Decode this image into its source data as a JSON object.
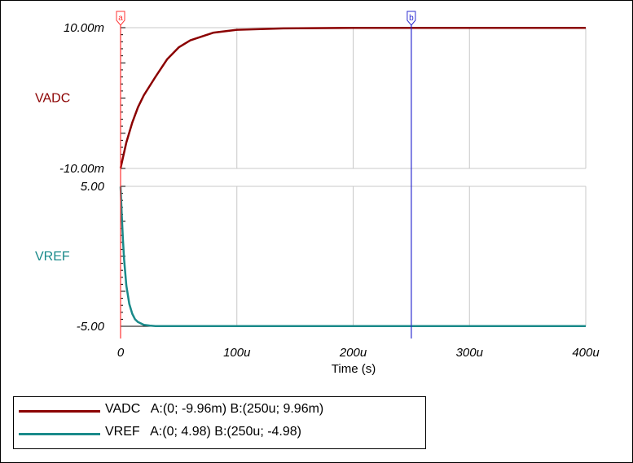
{
  "chart_data": {
    "type": "line",
    "xlabel": "Time (s)",
    "xlim": [
      0,
      0.0004
    ],
    "x_ticks": [
      {
        "value": 0,
        "label": "0"
      },
      {
        "value": 0.0001,
        "label": "100u"
      },
      {
        "value": 0.0002,
        "label": "200u"
      },
      {
        "value": 0.0003,
        "label": "300u"
      },
      {
        "value": 0.0004,
        "label": "400u"
      }
    ],
    "grid": true,
    "panels": [
      {
        "name": "VADC",
        "color": "#8b0000",
        "ylim": [
          -0.01,
          0.01
        ],
        "y_ticks": [
          {
            "value": 0.01,
            "label": "10.00m"
          },
          {
            "value": -0.01,
            "label": "-10.00m"
          }
        ],
        "series": {
          "name": "VADC",
          "x": [
            0,
            5e-06,
            1e-05,
            1.5e-05,
            2e-05,
            3e-05,
            4e-05,
            5e-05,
            6e-05,
            8e-05,
            0.0001,
            0.00014,
            0.0002,
            0.00025,
            0.0003,
            0.0004
          ],
          "y": [
            -0.00996,
            -0.0063,
            -0.0035,
            -0.0013,
            0.0004,
            0.003,
            0.0055,
            0.0072,
            0.0082,
            0.0093,
            0.0097,
            0.0099,
            0.00996,
            0.00996,
            0.00996,
            0.00996
          ]
        }
      },
      {
        "name": "VREF",
        "color": "#1a8a8a",
        "ylim": [
          -5,
          5
        ],
        "y_ticks": [
          {
            "value": 5,
            "label": "5.00"
          },
          {
            "value": -5,
            "label": "-5.00"
          }
        ],
        "series": {
          "name": "VREF",
          "x": [
            0,
            1e-06,
            2e-06,
            3e-06,
            5e-06,
            7.5e-06,
            1e-05,
            1.25e-05,
            1.5e-05,
            2e-05,
            2.5e-05,
            3e-05,
            4e-05,
            0.0001,
            0.00025,
            0.0004
          ],
          "y": [
            4.98,
            3.0,
            1.2,
            -0.2,
            -2.1,
            -3.4,
            -4.1,
            -4.5,
            -4.7,
            -4.9,
            -4.95,
            -4.98,
            -4.98,
            -4.98,
            -4.98,
            -4.98
          ]
        }
      }
    ],
    "cursors": [
      {
        "label": "a",
        "x": 0,
        "color": "#ff3333"
      },
      {
        "label": "b",
        "x": 0.00025,
        "color": "#2a2ad0"
      }
    ],
    "legend": [
      {
        "color": "#8b0000",
        "text": "VADC   A:(0; -9.96m) B:(250u; 9.96m)"
      },
      {
        "color": "#1a8a8a",
        "text": "VREF   A:(0; 4.98) B:(250u; -4.98)"
      }
    ]
  }
}
